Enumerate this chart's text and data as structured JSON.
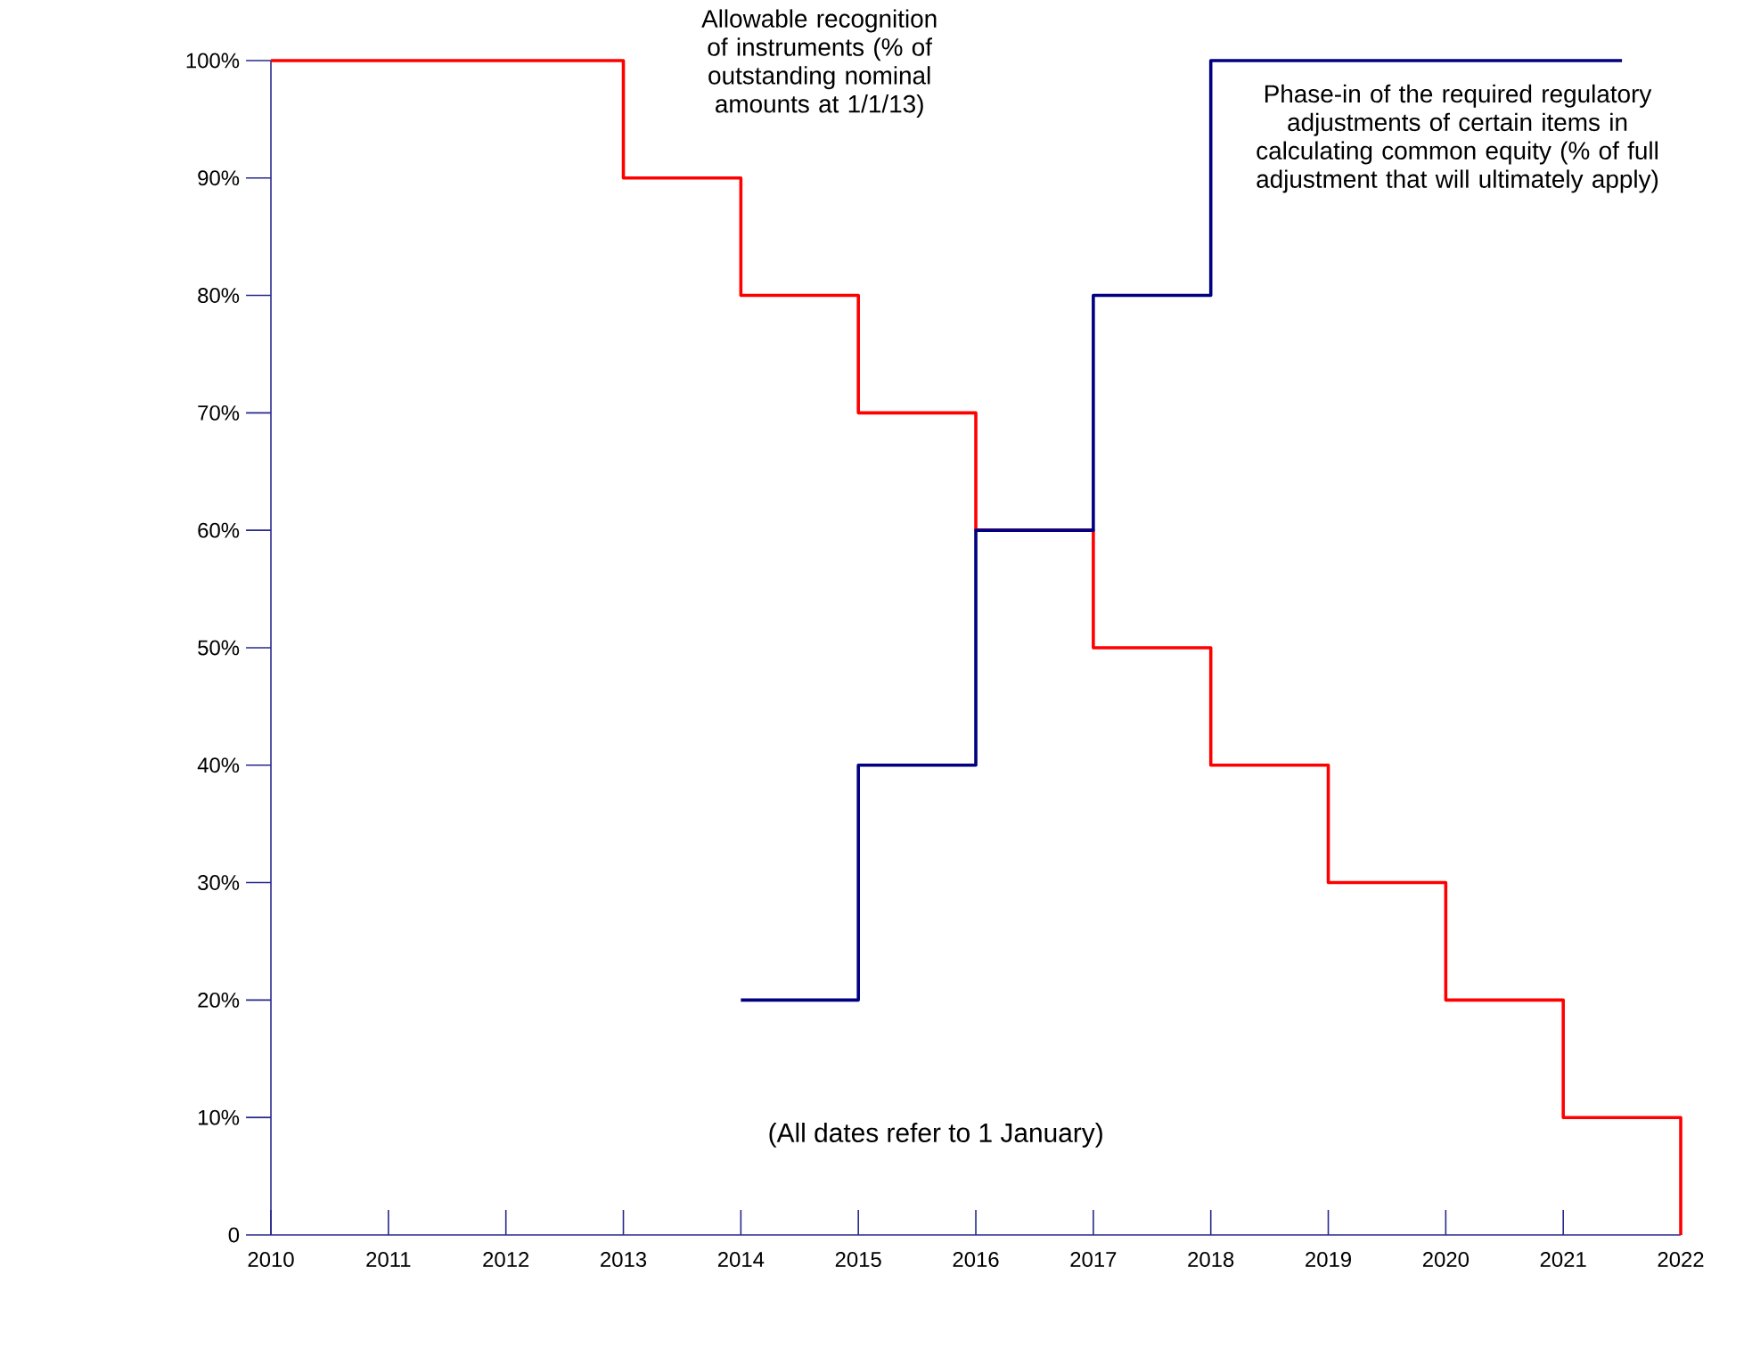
{
  "chart_data": {
    "type": "step",
    "series": [
      {
        "name": "Allowable recognition of instruments (% of outstanding nominal amounts at 1/1/13)",
        "color": "#ff0000",
        "x": [
          2010,
          2013,
          2014,
          2015,
          2016,
          2017,
          2018,
          2019,
          2020,
          2021,
          2022
        ],
        "values": [
          100,
          90,
          80,
          70,
          60,
          50,
          40,
          30,
          20,
          10,
          0
        ]
      },
      {
        "name": "Phase-in of the required regulatory adjustments of certain items in calculating common equity (% of full adjustment that will ultimately apply)",
        "color": "#000080",
        "x": [
          2014,
          2015,
          2016,
          2017,
          2018,
          2021.5
        ],
        "values": [
          20,
          40,
          60,
          80,
          100,
          100
        ]
      }
    ],
    "annotations": [
      "(All dates refer to 1 January)"
    ],
    "xlim": [
      2010,
      2022
    ],
    "xticks": [
      2010,
      2011,
      2012,
      2013,
      2014,
      2015,
      2016,
      2017,
      2018,
      2019,
      2020,
      2021,
      2022
    ],
    "ylim": [
      0,
      100
    ],
    "yticks": [
      {
        "value": 0,
        "label": "0"
      },
      {
        "value": 10,
        "label": "10%"
      },
      {
        "value": 20,
        "label": "20%"
      },
      {
        "value": 30,
        "label": "30%"
      },
      {
        "value": 40,
        "label": "40%"
      },
      {
        "value": 50,
        "label": "50%"
      },
      {
        "value": 60,
        "label": "60%"
      },
      {
        "value": 70,
        "label": "70%"
      },
      {
        "value": 80,
        "label": "80%"
      },
      {
        "value": 90,
        "label": "90%"
      },
      {
        "value": 100,
        "label": "100%"
      }
    ],
    "grid": false,
    "marker": "none",
    "line_style": "solid"
  }
}
